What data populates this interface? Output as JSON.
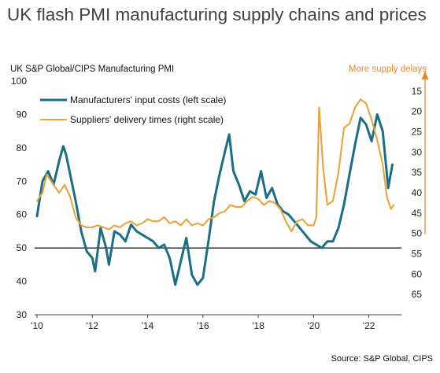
{
  "chart_data": {
    "type": "line",
    "title": "UK flash PMI manufacturing supply chains and prices",
    "left_axis_label": "UK S&P Global/CIPS Manufacturing PMI",
    "right_axis_label": "More supply delays",
    "source": "Source: S&P Global, CIPS",
    "x_ticks": [
      "'10",
      "'12",
      "'14",
      "'16",
      "'18",
      "'20",
      "'22"
    ],
    "x_range": [
      2010,
      2022.95
    ],
    "y_left_ticks": [
      30,
      40,
      50,
      60,
      70,
      80,
      90,
      100
    ],
    "y_left_range": [
      30,
      100
    ],
    "y_right_ticks": [
      15,
      20,
      25,
      30,
      35,
      40,
      45,
      50,
      55,
      60,
      65
    ],
    "y_right_range_top_bottom": [
      12.5,
      70
    ],
    "y_right_inverted": true,
    "reference_line_left": 50,
    "series": [
      {
        "name": "Manufacturers' input costs (left scale)",
        "axis": "left",
        "color": "#1a6e86",
        "x": [
          2010.0,
          2010.2,
          2010.4,
          2010.6,
          2010.8,
          2010.95,
          2011.05,
          2011.2,
          2011.4,
          2011.6,
          2011.8,
          2012.0,
          2012.1,
          2012.3,
          2012.5,
          2012.6,
          2012.8,
          2013.0,
          2013.2,
          2013.4,
          2013.6,
          2013.8,
          2014.0,
          2014.2,
          2014.4,
          2014.6,
          2014.8,
          2015.0,
          2015.2,
          2015.4,
          2015.6,
          2015.8,
          2016.0,
          2016.2,
          2016.4,
          2016.6,
          2016.8,
          2016.95,
          2017.1,
          2017.3,
          2017.5,
          2017.7,
          2017.9,
          2018.1,
          2018.3,
          2018.5,
          2018.7,
          2018.9,
          2019.1,
          2019.3,
          2019.5,
          2019.7,
          2019.9,
          2020.1,
          2020.3,
          2020.5,
          2020.7,
          2020.9,
          2021.1,
          2021.3,
          2021.5,
          2021.7,
          2021.9,
          2022.1,
          2022.3,
          2022.5,
          2022.7,
          2022.85
        ],
        "values": [
          59.5,
          70,
          73,
          69,
          76,
          80.5,
          78,
          72,
          64,
          55,
          49,
          47,
          43,
          56,
          50,
          45,
          55,
          54,
          52,
          57,
          55,
          54,
          53,
          52,
          50,
          51,
          47,
          39,
          46,
          53,
          42,
          39,
          41,
          52,
          64,
          72,
          79,
          84,
          73,
          69,
          64,
          67,
          66,
          73,
          65,
          68,
          63,
          61,
          60,
          58,
          56,
          54,
          52,
          51,
          50,
          52,
          52,
          56,
          63,
          72,
          81,
          89,
          87,
          82,
          90,
          85,
          68,
          75
        ]
      },
      {
        "name": "Suppliers' delivery times (right scale)",
        "axis": "right",
        "color": "#e8a33d",
        "x": [
          2010.0,
          2010.2,
          2010.35,
          2010.6,
          2010.8,
          2011.0,
          2011.2,
          2011.4,
          2011.6,
          2011.8,
          2012.0,
          2012.2,
          2012.4,
          2012.6,
          2012.8,
          2013.0,
          2013.2,
          2013.4,
          2013.6,
          2013.8,
          2014.0,
          2014.2,
          2014.4,
          2014.6,
          2014.8,
          2015.0,
          2015.2,
          2015.4,
          2015.6,
          2015.8,
          2016.0,
          2016.2,
          2016.4,
          2016.6,
          2016.8,
          2017.0,
          2017.2,
          2017.4,
          2017.6,
          2017.8,
          2018.0,
          2018.2,
          2018.4,
          2018.6,
          2018.8,
          2019.0,
          2019.2,
          2019.4,
          2019.6,
          2019.8,
          2020.0,
          2020.1,
          2020.2,
          2020.35,
          2020.5,
          2020.7,
          2020.9,
          2021.1,
          2021.3,
          2021.5,
          2021.7,
          2021.9,
          2022.1,
          2022.3,
          2022.5,
          2022.65,
          2022.8,
          2022.9
        ],
        "values": [
          42,
          40,
          35.5,
          38,
          40,
          38,
          41,
          46,
          48,
          48.5,
          48.5,
          48,
          48.5,
          49,
          48,
          48.5,
          47.5,
          47,
          48,
          47.5,
          46.5,
          47,
          47,
          46,
          47.5,
          47,
          48,
          46.5,
          48,
          47.5,
          48,
          46.5,
          46,
          45,
          44.5,
          43,
          43.5,
          43.5,
          42,
          41,
          41.5,
          43,
          42,
          42.5,
          44,
          47,
          49.5,
          47,
          46.5,
          48,
          48,
          46,
          19,
          34,
          43,
          42,
          35,
          24,
          23,
          19,
          17,
          18,
          22,
          27,
          33,
          41,
          44,
          43
        ]
      }
    ]
  }
}
